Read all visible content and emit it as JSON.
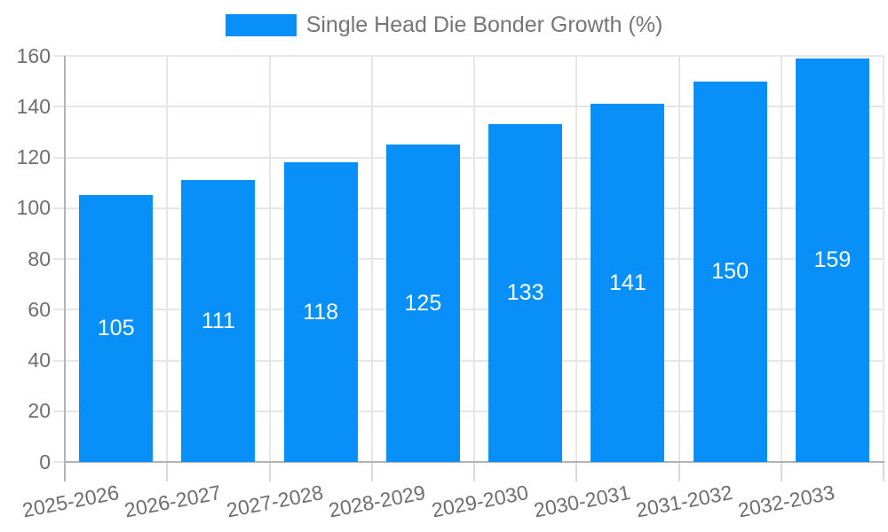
{
  "chart_data": {
    "type": "bar",
    "legend": {
      "label": "Single Head Die Bonder Growth (%)",
      "position": "top"
    },
    "categories": [
      "2025-2026",
      "2026-2027",
      "2027-2028",
      "2028-2029",
      "2029-2030",
      "2030-2031",
      "2031-2032",
      "2032-2033"
    ],
    "values": [
      105,
      111,
      118,
      125,
      133,
      141,
      150,
      159
    ],
    "yticks": [
      0,
      20,
      40,
      60,
      80,
      100,
      120,
      140,
      160
    ],
    "ylim": [
      0,
      160
    ],
    "grid": true,
    "value_label_position": "middle-of-bar",
    "x_label_rotation_deg": -11,
    "colors": {
      "bar": "#0890F8",
      "value_label": "#FFFFFF",
      "axis_text": "#6E6E6E",
      "legend_text": "#757575",
      "gridline": "#E6E6E6",
      "axis_line": "#B3B3B3",
      "tick": "#D9D9D9"
    }
  }
}
